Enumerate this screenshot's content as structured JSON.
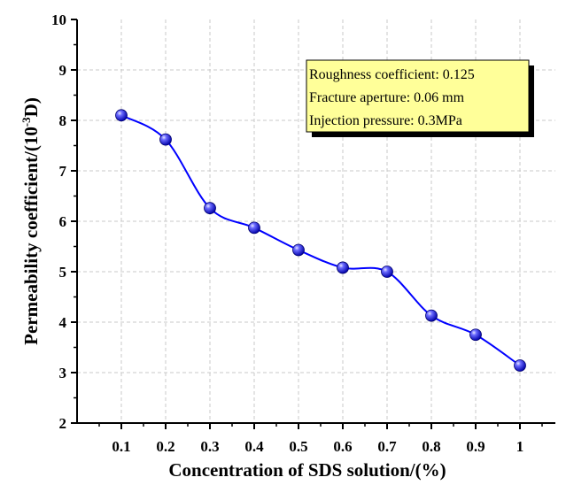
{
  "chart_data": {
    "type": "line",
    "x": [
      0.1,
      0.2,
      0.3,
      0.4,
      0.5,
      0.6,
      0.7,
      0.8,
      0.9,
      1
    ],
    "x_tick_labels": [
      "0.1",
      "0.2",
      "0.3",
      "0.4",
      "0.5",
      "0.6",
      "0.7",
      "0.8",
      "0.9",
      "1"
    ],
    "series": [
      {
        "values": [
          8.1,
          7.62,
          6.26,
          5.87,
          5.43,
          5.08,
          5.0,
          4.13,
          3.75,
          3.14
        ]
      }
    ],
    "xlabel": "Concentration of SDS solution/(%)",
    "ylabel_main": "Permeability coefficient/(10",
    "ylabel_sup": "-3",
    "ylabel_tail": "D)",
    "xlim": [
      0,
      1.08
    ],
    "ylim": [
      2,
      10
    ],
    "y_ticks": [
      2,
      3,
      4,
      5,
      6,
      7,
      8,
      9,
      10
    ],
    "grid": true,
    "line_color": "#0000ff",
    "marker_color": "#1a1aff",
    "annotation": {
      "lines": [
        "Roughness coefficient: 0.125",
        "Fracture aperture: 0.06 mm",
        "Injection pressure: 0.3MPa"
      ],
      "background": "#ffff99",
      "border": "#000000"
    }
  }
}
